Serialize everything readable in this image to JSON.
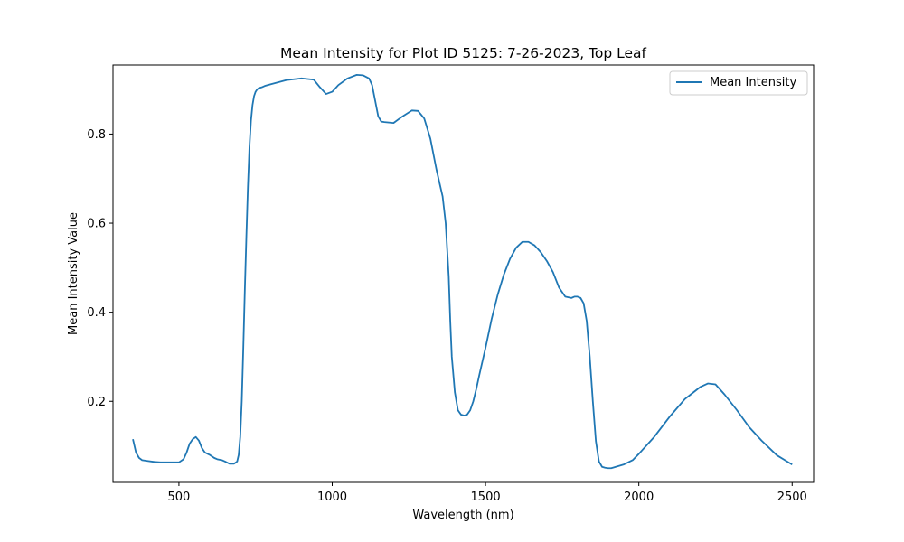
{
  "chart_data": {
    "type": "line",
    "title": "Mean Intensity for Plot ID 5125: 7-26-2023, Top Leaf",
    "xlabel": "Wavelength (nm)",
    "ylabel": "Mean Intensity Value",
    "xlim": [
      285,
      2570
    ],
    "ylim": [
      0.018,
      0.955
    ],
    "xticks": [
      500,
      1000,
      1500,
      2000,
      2500
    ],
    "yticks": [
      0.2,
      0.4,
      0.6,
      0.8
    ],
    "xtick_labels": [
      "500",
      "1000",
      "1500",
      "2000",
      "2500"
    ],
    "ytick_labels": [
      "0.2",
      "0.4",
      "0.6",
      "0.8"
    ],
    "grid": false,
    "legend_position": "upper right",
    "colors": {
      "series": "#1f77b4"
    },
    "series": [
      {
        "name": "Mean Intensity",
        "x": [
          350,
          360,
          370,
          380,
          400,
          420,
          440,
          460,
          480,
          500,
          515,
          525,
          535,
          545,
          555,
          565,
          575,
          585,
          600,
          615,
          625,
          640,
          650,
          665,
          680,
          690,
          695,
          700,
          705,
          710,
          715,
          720,
          725,
          730,
          735,
          740,
          745,
          750,
          755,
          760,
          770,
          780,
          800,
          850,
          900,
          940,
          960,
          980,
          1000,
          1020,
          1050,
          1080,
          1100,
          1120,
          1130,
          1140,
          1150,
          1160,
          1170,
          1200,
          1230,
          1260,
          1280,
          1300,
          1320,
          1340,
          1360,
          1370,
          1380,
          1385,
          1390,
          1400,
          1410,
          1420,
          1430,
          1440,
          1450,
          1460,
          1470,
          1480,
          1500,
          1520,
          1540,
          1560,
          1580,
          1600,
          1620,
          1640,
          1660,
          1680,
          1700,
          1720,
          1740,
          1760,
          1780,
          1790,
          1800,
          1810,
          1820,
          1830,
          1840,
          1850,
          1860,
          1870,
          1880,
          1890,
          1900,
          1910,
          1920,
          1950,
          1980,
          2000,
          2050,
          2100,
          2150,
          2200,
          2225,
          2250,
          2280,
          2320,
          2360,
          2400,
          2450,
          2500
        ],
        "y": [
          0.115,
          0.085,
          0.073,
          0.068,
          0.066,
          0.064,
          0.063,
          0.063,
          0.063,
          0.063,
          0.07,
          0.085,
          0.105,
          0.115,
          0.12,
          0.112,
          0.095,
          0.085,
          0.08,
          0.073,
          0.07,
          0.068,
          0.065,
          0.06,
          0.06,
          0.065,
          0.08,
          0.12,
          0.2,
          0.32,
          0.45,
          0.57,
          0.68,
          0.77,
          0.83,
          0.865,
          0.885,
          0.895,
          0.9,
          0.903,
          0.905,
          0.908,
          0.912,
          0.921,
          0.925,
          0.922,
          0.905,
          0.89,
          0.895,
          0.91,
          0.925,
          0.933,
          0.932,
          0.925,
          0.91,
          0.875,
          0.84,
          0.828,
          0.827,
          0.825,
          0.84,
          0.853,
          0.852,
          0.835,
          0.79,
          0.72,
          0.66,
          0.6,
          0.48,
          0.38,
          0.3,
          0.22,
          0.18,
          0.17,
          0.168,
          0.17,
          0.18,
          0.2,
          0.228,
          0.26,
          0.32,
          0.385,
          0.44,
          0.485,
          0.52,
          0.545,
          0.558,
          0.558,
          0.55,
          0.535,
          0.515,
          0.49,
          0.455,
          0.435,
          0.432,
          0.435,
          0.435,
          0.432,
          0.42,
          0.38,
          0.3,
          0.2,
          0.11,
          0.065,
          0.053,
          0.051,
          0.05,
          0.05,
          0.052,
          0.058,
          0.068,
          0.082,
          0.12,
          0.165,
          0.205,
          0.232,
          0.24,
          0.238,
          0.215,
          0.18,
          0.142,
          0.112,
          0.079,
          0.058
        ]
      }
    ]
  }
}
